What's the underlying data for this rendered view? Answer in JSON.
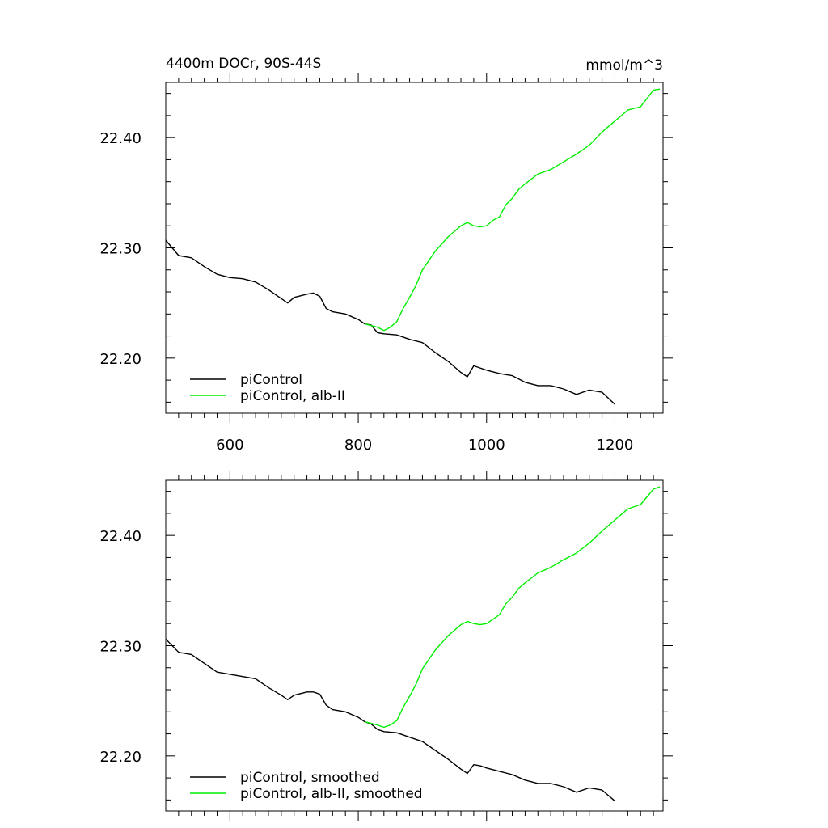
{
  "figure": {
    "title_left": "4400m DOCr, 90S-44S",
    "title_right": "mmol/m^3"
  },
  "colors": {
    "piControl": "#000000",
    "alb_II": "#00ee00",
    "axes": "#000000",
    "background": "#ffffff"
  },
  "chart_data": [
    {
      "type": "line",
      "title": "4400m DOCr, 90S-44S",
      "units": "mmol/m^3",
      "xlim": [
        500,
        1275
      ],
      "ylim": [
        22.15,
        22.45
      ],
      "x_ticks": [
        600,
        800,
        1000,
        1200
      ],
      "x_tick_labels": [
        "600",
        "800",
        "1000",
        "1200"
      ],
      "y_ticks": [
        22.2,
        22.3,
        22.4
      ],
      "y_tick_labels": [
        "22.20",
        "22.30",
        "22.40"
      ],
      "grid": false,
      "legend_position": "bottom-left",
      "series": [
        {
          "name": "piControl",
          "color": "#000000",
          "x": [
            500,
            520,
            540,
            560,
            580,
            600,
            620,
            640,
            660,
            680,
            690,
            700,
            720,
            730,
            740,
            750,
            760,
            780,
            800,
            810,
            820,
            830,
            840,
            860,
            880,
            900,
            920,
            940,
            960,
            970,
            980,
            990,
            1000,
            1020,
            1040,
            1060,
            1080,
            1100,
            1120,
            1140,
            1160,
            1180,
            1200
          ],
          "y": [
            22.307,
            22.293,
            22.291,
            22.283,
            22.276,
            22.273,
            22.272,
            22.269,
            22.262,
            22.254,
            22.25,
            22.255,
            22.258,
            22.259,
            22.256,
            22.245,
            22.242,
            22.24,
            22.235,
            22.231,
            22.23,
            22.223,
            22.222,
            22.221,
            22.217,
            22.214,
            22.205,
            22.197,
            22.187,
            22.183,
            22.193,
            22.191,
            22.189,
            22.186,
            22.184,
            22.178,
            22.175,
            22.175,
            22.172,
            22.167,
            22.171,
            22.169,
            22.158
          ]
        },
        {
          "name": "piControl, alb-II",
          "color": "#00ee00",
          "x": [
            810,
            830,
            840,
            850,
            860,
            870,
            880,
            890,
            900,
            920,
            940,
            960,
            970,
            980,
            990,
            1000,
            1010,
            1020,
            1030,
            1040,
            1050,
            1060,
            1080,
            1100,
            1120,
            1140,
            1160,
            1180,
            1200,
            1220,
            1240,
            1260,
            1270
          ],
          "y": [
            22.231,
            22.228,
            22.225,
            22.228,
            22.233,
            22.245,
            22.255,
            22.266,
            22.28,
            22.297,
            22.31,
            22.32,
            22.323,
            22.32,
            22.319,
            22.32,
            22.325,
            22.328,
            22.339,
            22.345,
            22.353,
            22.358,
            22.367,
            22.371,
            22.378,
            22.385,
            22.393,
            22.405,
            22.415,
            22.425,
            22.428,
            22.443,
            22.444
          ]
        }
      ]
    },
    {
      "type": "line",
      "title": "",
      "xlim": [
        500,
        1275
      ],
      "ylim": [
        22.15,
        22.45
      ],
      "x_ticks": [
        600,
        800,
        1000,
        1200
      ],
      "x_tick_labels": [],
      "y_ticks": [
        22.2,
        22.3,
        22.4
      ],
      "y_tick_labels": [
        "22.20",
        "22.30",
        "22.40"
      ],
      "grid": false,
      "legend_position": "bottom-left",
      "series": [
        {
          "name": "piControl, smoothed",
          "color": "#000000",
          "x": [
            500,
            520,
            540,
            560,
            580,
            600,
            620,
            640,
            660,
            680,
            690,
            700,
            720,
            730,
            740,
            750,
            760,
            780,
            800,
            810,
            820,
            830,
            840,
            860,
            880,
            900,
            920,
            940,
            960,
            970,
            980,
            990,
            1000,
            1020,
            1040,
            1060,
            1080,
            1100,
            1120,
            1140,
            1160,
            1180,
            1200
          ],
          "y": [
            22.306,
            22.294,
            22.292,
            22.284,
            22.276,
            22.274,
            22.272,
            22.27,
            22.262,
            22.255,
            22.251,
            22.255,
            22.258,
            22.258,
            22.256,
            22.246,
            22.242,
            22.24,
            22.235,
            22.231,
            22.229,
            22.224,
            22.222,
            22.221,
            22.217,
            22.213,
            22.205,
            22.197,
            22.188,
            22.184,
            22.192,
            22.191,
            22.189,
            22.186,
            22.183,
            22.178,
            22.175,
            22.175,
            22.172,
            22.167,
            22.171,
            22.169,
            22.159
          ]
        },
        {
          "name": "piControl, alb-II, smoothed",
          "color": "#00ee00",
          "x": [
            810,
            830,
            840,
            850,
            860,
            870,
            880,
            890,
            900,
            920,
            940,
            960,
            970,
            980,
            990,
            1000,
            1010,
            1020,
            1030,
            1040,
            1050,
            1060,
            1080,
            1100,
            1120,
            1140,
            1160,
            1180,
            1200,
            1220,
            1240,
            1260,
            1270
          ],
          "y": [
            22.231,
            22.228,
            22.226,
            22.228,
            22.232,
            22.244,
            22.254,
            22.265,
            22.279,
            22.296,
            22.309,
            22.319,
            22.322,
            22.32,
            22.319,
            22.32,
            22.324,
            22.328,
            22.338,
            22.344,
            22.352,
            22.357,
            22.366,
            22.371,
            22.378,
            22.384,
            22.393,
            22.404,
            22.414,
            22.424,
            22.428,
            22.442,
            22.444
          ]
        }
      ]
    }
  ]
}
